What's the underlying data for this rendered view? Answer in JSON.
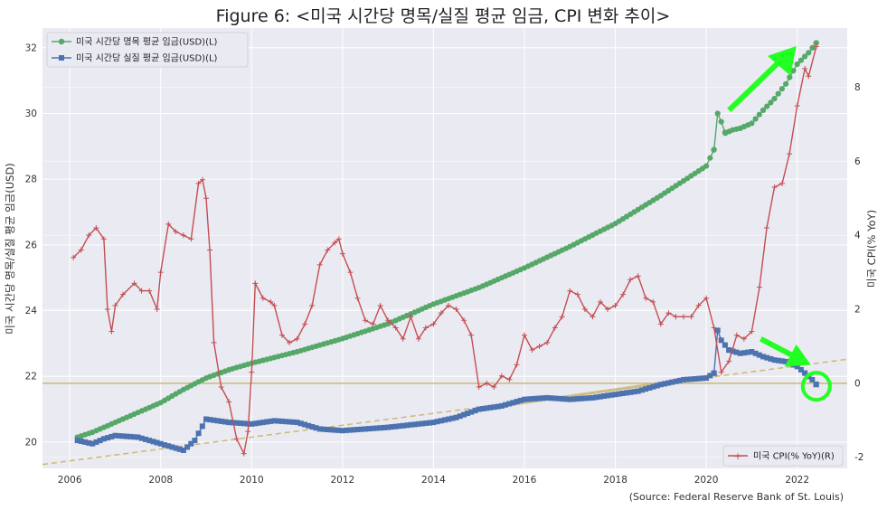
{
  "chart_data": {
    "type": "line",
    "title": "Figure 6: <미국 시간당 명목/실질 평균 임금, CPI 변화 추이>",
    "ylabel": "미국 시간당 명목/실질 평균 임금(USD)",
    "ylabel_right": "미국 CPI(% YoY)",
    "source": "(Source: Federal Reserve Bank of St. Louis)",
    "xlim": [
      2005.4,
      2023.1
    ],
    "ylim": [
      19.2,
      32.6
    ],
    "ylim_right": [
      -2.3,
      9.6
    ],
    "x_ticks": [
      2006,
      2008,
      2010,
      2012,
      2014,
      2016,
      2018,
      2020,
      2022
    ],
    "y_ticks": [
      20,
      22,
      24,
      26,
      28,
      30,
      32
    ],
    "y_ticks_right": [
      -2,
      0,
      2,
      4,
      6,
      8
    ],
    "grid": true,
    "legend_left_placement": "top-left",
    "legend_right_placement": "bottom-right",
    "colors": {
      "nominal": "#55a868",
      "real": "#4c72b0",
      "cpi": "#c44e52",
      "trend": "#ccb974",
      "arrow": "#22ff22",
      "plot_bg": "#eaeaf2",
      "grid": "#ffffff"
    },
    "series": [
      {
        "name": "미국 시간당 명목 평균 임금(USD)(L)",
        "axis": "left",
        "marker": "circle",
        "points": [
          [
            2006.17,
            20.15
          ],
          [
            2006.5,
            20.3
          ],
          [
            2007.0,
            20.6
          ],
          [
            2007.5,
            20.9
          ],
          [
            2008.0,
            21.2
          ],
          [
            2008.5,
            21.6
          ],
          [
            2009.0,
            21.95
          ],
          [
            2009.5,
            22.2
          ],
          [
            2010.0,
            22.4
          ],
          [
            2011.0,
            22.75
          ],
          [
            2012.0,
            23.15
          ],
          [
            2013.0,
            23.6
          ],
          [
            2014.0,
            24.2
          ],
          [
            2015.0,
            24.7
          ],
          [
            2016.0,
            25.3
          ],
          [
            2017.0,
            25.95
          ],
          [
            2018.0,
            26.65
          ],
          [
            2019.0,
            27.5
          ],
          [
            2019.5,
            27.95
          ],
          [
            2020.0,
            28.4
          ],
          [
            2020.17,
            28.9
          ],
          [
            2020.25,
            30.0
          ],
          [
            2020.33,
            29.75
          ],
          [
            2020.42,
            29.4
          ],
          [
            2020.58,
            29.5
          ],
          [
            2020.75,
            29.55
          ],
          [
            2021.0,
            29.7
          ],
          [
            2021.25,
            30.1
          ],
          [
            2021.5,
            30.45
          ],
          [
            2021.75,
            30.9
          ],
          [
            2022.0,
            31.5
          ],
          [
            2022.25,
            31.85
          ],
          [
            2022.42,
            32.15
          ]
        ]
      },
      {
        "name": "미국 시간당 실질 평균 임금(USD)(L)",
        "axis": "left",
        "marker": "square",
        "points": [
          [
            2006.17,
            20.05
          ],
          [
            2006.5,
            19.95
          ],
          [
            2006.75,
            20.1
          ],
          [
            2007.0,
            20.2
          ],
          [
            2007.5,
            20.15
          ],
          [
            2008.0,
            19.95
          ],
          [
            2008.5,
            19.75
          ],
          [
            2008.75,
            20.05
          ],
          [
            2009.0,
            20.7
          ],
          [
            2009.5,
            20.6
          ],
          [
            2010.0,
            20.55
          ],
          [
            2010.5,
            20.65
          ],
          [
            2011.0,
            20.6
          ],
          [
            2011.5,
            20.4
          ],
          [
            2012.0,
            20.35
          ],
          [
            2012.5,
            20.4
          ],
          [
            2013.0,
            20.45
          ],
          [
            2014.0,
            20.6
          ],
          [
            2014.5,
            20.75
          ],
          [
            2015.0,
            21.0
          ],
          [
            2015.5,
            21.1
          ],
          [
            2016.0,
            21.3
          ],
          [
            2016.5,
            21.35
          ],
          [
            2017.0,
            21.3
          ],
          [
            2017.5,
            21.35
          ],
          [
            2018.0,
            21.45
          ],
          [
            2018.5,
            21.55
          ],
          [
            2019.0,
            21.75
          ],
          [
            2019.5,
            21.9
          ],
          [
            2020.0,
            21.95
          ],
          [
            2020.17,
            22.1
          ],
          [
            2020.25,
            23.4
          ],
          [
            2020.33,
            23.1
          ],
          [
            2020.5,
            22.8
          ],
          [
            2020.75,
            22.7
          ],
          [
            2021.0,
            22.75
          ],
          [
            2021.25,
            22.6
          ],
          [
            2021.5,
            22.5
          ],
          [
            2021.75,
            22.45
          ],
          [
            2022.0,
            22.3
          ],
          [
            2022.17,
            22.1
          ],
          [
            2022.33,
            21.9
          ],
          [
            2022.42,
            21.75
          ]
        ]
      },
      {
        "name": "미국 CPI(% YoY)(R)",
        "axis": "right",
        "marker": "plus",
        "points": [
          [
            2006.08,
            3.4
          ],
          [
            2006.25,
            3.6
          ],
          [
            2006.42,
            4.0
          ],
          [
            2006.58,
            4.2
          ],
          [
            2006.75,
            3.9
          ],
          [
            2006.83,
            2.0
          ],
          [
            2006.92,
            1.4
          ],
          [
            2007.0,
            2.1
          ],
          [
            2007.17,
            2.4
          ],
          [
            2007.42,
            2.7
          ],
          [
            2007.58,
            2.5
          ],
          [
            2007.75,
            2.5
          ],
          [
            2007.92,
            2.0
          ],
          [
            2008.0,
            3.0
          ],
          [
            2008.17,
            4.3
          ],
          [
            2008.33,
            4.1
          ],
          [
            2008.5,
            4.0
          ],
          [
            2008.67,
            3.9
          ],
          [
            2008.83,
            5.4
          ],
          [
            2008.92,
            5.5
          ],
          [
            2009.0,
            5.0
          ],
          [
            2009.08,
            3.6
          ],
          [
            2009.17,
            1.1
          ],
          [
            2009.33,
            -0.1
          ],
          [
            2009.5,
            -0.5
          ],
          [
            2009.67,
            -1.5
          ],
          [
            2009.83,
            -1.9
          ],
          [
            2009.92,
            -1.3
          ],
          [
            2010.0,
            0.3
          ],
          [
            2010.08,
            2.7
          ],
          [
            2010.25,
            2.3
          ],
          [
            2010.42,
            2.2
          ],
          [
            2010.5,
            2.1
          ],
          [
            2010.67,
            1.3
          ],
          [
            2010.83,
            1.1
          ],
          [
            2011.0,
            1.2
          ],
          [
            2011.17,
            1.6
          ],
          [
            2011.33,
            2.1
          ],
          [
            2011.5,
            3.2
          ],
          [
            2011.67,
            3.6
          ],
          [
            2011.83,
            3.8
          ],
          [
            2011.92,
            3.9
          ],
          [
            2012.0,
            3.5
          ],
          [
            2012.17,
            3.0
          ],
          [
            2012.33,
            2.3
          ],
          [
            2012.5,
            1.7
          ],
          [
            2012.67,
            1.6
          ],
          [
            2012.83,
            2.1
          ],
          [
            2013.0,
            1.7
          ],
          [
            2013.17,
            1.5
          ],
          [
            2013.33,
            1.2
          ],
          [
            2013.5,
            1.8
          ],
          [
            2013.67,
            1.2
          ],
          [
            2013.83,
            1.5
          ],
          [
            2014.0,
            1.6
          ],
          [
            2014.17,
            1.9
          ],
          [
            2014.33,
            2.1
          ],
          [
            2014.5,
            2.0
          ],
          [
            2014.67,
            1.7
          ],
          [
            2014.83,
            1.3
          ],
          [
            2015.0,
            -0.1
          ],
          [
            2015.17,
            0.0
          ],
          [
            2015.33,
            -0.1
          ],
          [
            2015.5,
            0.2
          ],
          [
            2015.67,
            0.1
          ],
          [
            2015.83,
            0.5
          ],
          [
            2016.0,
            1.3
          ],
          [
            2016.17,
            0.9
          ],
          [
            2016.33,
            1.0
          ],
          [
            2016.5,
            1.1
          ],
          [
            2016.67,
            1.5
          ],
          [
            2016.83,
            1.8
          ],
          [
            2017.0,
            2.5
          ],
          [
            2017.17,
            2.4
          ],
          [
            2017.33,
            2.0
          ],
          [
            2017.5,
            1.8
          ],
          [
            2017.67,
            2.2
          ],
          [
            2017.83,
            2.0
          ],
          [
            2018.0,
            2.1
          ],
          [
            2018.17,
            2.4
          ],
          [
            2018.33,
            2.8
          ],
          [
            2018.5,
            2.9
          ],
          [
            2018.67,
            2.3
          ],
          [
            2018.83,
            2.2
          ],
          [
            2019.0,
            1.6
          ],
          [
            2019.17,
            1.9
          ],
          [
            2019.33,
            1.8
          ],
          [
            2019.5,
            1.8
          ],
          [
            2019.67,
            1.8
          ],
          [
            2019.83,
            2.1
          ],
          [
            2020.0,
            2.3
          ],
          [
            2020.17,
            1.5
          ],
          [
            2020.33,
            0.3
          ],
          [
            2020.5,
            0.6
          ],
          [
            2020.67,
            1.3
          ],
          [
            2020.83,
            1.2
          ],
          [
            2021.0,
            1.4
          ],
          [
            2021.17,
            2.6
          ],
          [
            2021.33,
            4.2
          ],
          [
            2021.5,
            5.3
          ],
          [
            2021.67,
            5.4
          ],
          [
            2021.83,
            6.2
          ],
          [
            2022.0,
            7.5
          ],
          [
            2022.17,
            8.5
          ],
          [
            2022.25,
            8.3
          ],
          [
            2022.42,
            9.1
          ]
        ]
      }
    ],
    "trend_lines": [
      {
        "kind": "dashed",
        "x": [
          2005.4,
          2023.1
        ],
        "y": [
          19.32,
          22.52
        ]
      },
      {
        "kind": "solid",
        "x": [
          2015.0,
          2020.25
        ],
        "y": [
          21.0,
          22.05
        ]
      }
    ],
    "hline_right": 0
  }
}
